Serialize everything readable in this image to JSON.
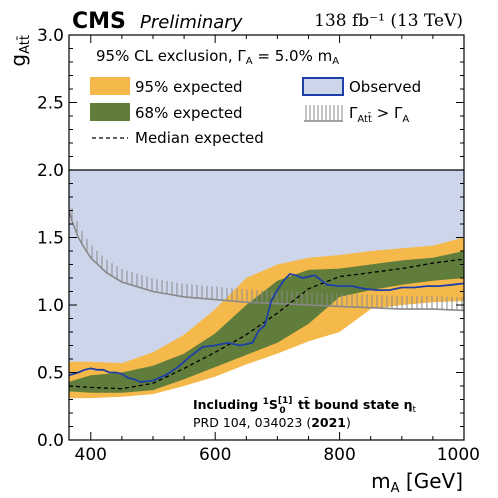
{
  "header": {
    "experiment": "CMS",
    "status": "Preliminary",
    "lumi": "138 fb⁻¹ (13 TeV)"
  },
  "legend": {
    "title": "95% CL exclusion, Γ_A = 5.0% m_A",
    "entries": [
      {
        "key": "exp95",
        "label": "95% expected"
      },
      {
        "key": "observed",
        "label": "Observed"
      },
      {
        "key": "exp68",
        "label": "68% expected"
      },
      {
        "key": "width",
        "label": "Γ_Att̄ > Γ_A"
      },
      {
        "key": "median",
        "label": "Median expected"
      }
    ]
  },
  "annotation": {
    "line1": "Including ¹S₀^[1] tt̄ bound state η_t",
    "line2_prefix": "PRD 104, 034023 (",
    "line2_year": "2021",
    "line2_suffix": ")"
  },
  "colors": {
    "exp95": "#f5b94b",
    "exp68": "#607d3b",
    "observed": "#1f3fa8",
    "observed_fill": "#cdd5ea",
    "median": "#000000",
    "width_line": "#8a8a8a",
    "overlap_95_obs": "#c8a676"
  },
  "chart_data": {
    "type": "line",
    "xlabel": "m_A [GeV]",
    "ylabel": "g_Att̄",
    "xlim": [
      365,
      1000
    ],
    "ylim": [
      0.0,
      3.0
    ],
    "x_ticks": [
      400,
      600,
      800,
      1000
    ],
    "x_tick_labels": [
      "400",
      "600",
      "800",
      "1000"
    ],
    "y_ticks": [
      0.0,
      0.5,
      1.0,
      1.5,
      2.0,
      2.5,
      3.0
    ],
    "y_tick_labels": [
      "0.0",
      "0.5",
      "1.0",
      "1.5",
      "2.0",
      "2.5",
      "3.0"
    ],
    "grid": false,
    "legend_position": "top",
    "legend_region_y": [
      2.0,
      3.0
    ],
    "band_95": {
      "x": [
        365,
        400,
        450,
        500,
        550,
        600,
        650,
        700,
        750,
        800,
        850,
        900,
        950,
        1000
      ],
      "lower": [
        0.31,
        0.31,
        0.32,
        0.34,
        0.4,
        0.47,
        0.56,
        0.64,
        0.73,
        0.8,
        0.97,
        1.0,
        1.02,
        1.03
      ],
      "upper": [
        0.58,
        0.58,
        0.57,
        0.65,
        0.78,
        0.97,
        1.2,
        1.3,
        1.35,
        1.37,
        1.4,
        1.42,
        1.44,
        1.5
      ]
    },
    "band_68": {
      "x": [
        365,
        400,
        450,
        500,
        550,
        600,
        650,
        700,
        750,
        800,
        850,
        900,
        950,
        1000
      ],
      "lower": [
        0.36,
        0.35,
        0.35,
        0.37,
        0.45,
        0.54,
        0.63,
        0.72,
        0.86,
        1.06,
        1.11,
        1.15,
        1.18,
        1.2
      ],
      "upper": [
        0.43,
        0.48,
        0.5,
        0.55,
        0.64,
        0.79,
        1.0,
        1.18,
        1.26,
        1.27,
        1.3,
        1.33,
        1.35,
        1.4
      ]
    },
    "median_expected": {
      "x": [
        365,
        400,
        450,
        500,
        550,
        600,
        650,
        700,
        750,
        800,
        850,
        900,
        950,
        1000
      ],
      "y": [
        0.4,
        0.39,
        0.38,
        0.42,
        0.53,
        0.65,
        0.78,
        0.94,
        1.12,
        1.21,
        1.24,
        1.27,
        1.31,
        1.34
      ]
    },
    "observed": {
      "x": [
        365,
        380,
        390,
        400,
        410,
        420,
        430,
        440,
        450,
        460,
        470,
        480,
        500,
        520,
        540,
        560,
        580,
        600,
        620,
        640,
        660,
        670,
        680,
        690,
        700,
        710,
        720,
        730,
        740,
        760,
        780,
        800,
        820,
        840,
        860,
        880,
        900,
        920,
        940,
        960,
        980,
        1000
      ],
      "y": [
        0.48,
        0.5,
        0.52,
        0.53,
        0.52,
        0.52,
        0.5,
        0.5,
        0.49,
        0.46,
        0.45,
        0.43,
        0.44,
        0.48,
        0.54,
        0.62,
        0.69,
        0.7,
        0.72,
        0.7,
        0.72,
        0.81,
        0.85,
        1.03,
        1.11,
        1.18,
        1.23,
        1.22,
        1.2,
        1.22,
        1.15,
        1.14,
        1.14,
        1.12,
        1.11,
        1.11,
        1.13,
        1.13,
        1.14,
        1.14,
        1.15,
        1.16
      ]
    },
    "width_boundary": {
      "x": [
        365,
        370,
        380,
        390,
        400,
        425,
        450,
        500,
        550,
        600,
        650,
        700,
        750,
        800,
        850,
        900,
        950,
        1000
      ],
      "y": [
        1.7,
        1.62,
        1.5,
        1.42,
        1.35,
        1.24,
        1.17,
        1.1,
        1.06,
        1.04,
        1.02,
        1.01,
        1.0,
        0.99,
        0.98,
        0.97,
        0.97,
        0.96
      ]
    }
  }
}
